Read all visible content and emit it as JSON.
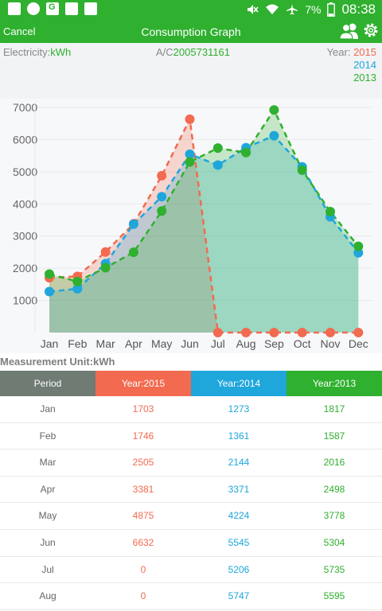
{
  "status_bar": {
    "battery": "7%",
    "time": "08:38",
    "icons": [
      "image-icon",
      "circle-app-icon",
      "google-plus-icon",
      "sim-icon",
      "bag-icon",
      "mute-icon",
      "wifi-icon",
      "airplane-icon",
      "battery-icon"
    ]
  },
  "app_bar": {
    "cancel_label": "Cancel",
    "title": "Consumption Graph",
    "icons": [
      "users-icon",
      "gear-icon"
    ],
    "color": "#2fb02f"
  },
  "info": {
    "electricity_label": "Electricity:",
    "electricity_unit": "kWh",
    "account_label": "A/C",
    "account_number": "2005731161",
    "year_label": "Year:",
    "year_2015": "2015",
    "year_2014": "2014",
    "year_2013": "2013"
  },
  "chart_data": {
    "type": "area",
    "categories": [
      "Jan",
      "Feb",
      "Mar",
      "Apr",
      "May",
      "Jun",
      "Jul",
      "Aug",
      "Sep",
      "Oct",
      "Nov",
      "Dec"
    ],
    "ylim": [
      0,
      7000
    ],
    "yticks": [
      1000,
      2000,
      3000,
      4000,
      5000,
      6000,
      7000
    ],
    "grid": true,
    "series": [
      {
        "name": "2015",
        "color": "#f26a4f",
        "values": [
          1703,
          1746,
          2505,
          3381,
          4875,
          6632,
          0,
          0,
          0,
          0,
          0,
          0
        ]
      },
      {
        "name": "2014",
        "color": "#1fa6db",
        "values": [
          1273,
          1361,
          2144,
          3371,
          4224,
          5545,
          5206,
          5747,
          6120,
          5150,
          3600,
          2480
        ]
      },
      {
        "name": "2013",
        "color": "#2fb02f",
        "values": [
          1817,
          1587,
          2016,
          2498,
          3778,
          5304,
          5735,
          5595,
          6920,
          5050,
          3760,
          2680
        ]
      }
    ]
  },
  "measurement_unit": "Measurement Unit:kWh",
  "table": {
    "headers": [
      "Period",
      "Year:2015",
      "Year:2014",
      "Year:2013"
    ],
    "rows": [
      [
        "Jan",
        "1703",
        "1273",
        "1817"
      ],
      [
        "Feb",
        "1746",
        "1361",
        "1587"
      ],
      [
        "Mar",
        "2505",
        "2144",
        "2016"
      ],
      [
        "Apr",
        "3381",
        "3371",
        "2498"
      ],
      [
        "May",
        "4875",
        "4224",
        "3778"
      ],
      [
        "Jun",
        "6632",
        "5545",
        "5304"
      ],
      [
        "Jul",
        "0",
        "5206",
        "5735"
      ],
      [
        "Aug",
        "0",
        "5747",
        "5595"
      ]
    ]
  }
}
